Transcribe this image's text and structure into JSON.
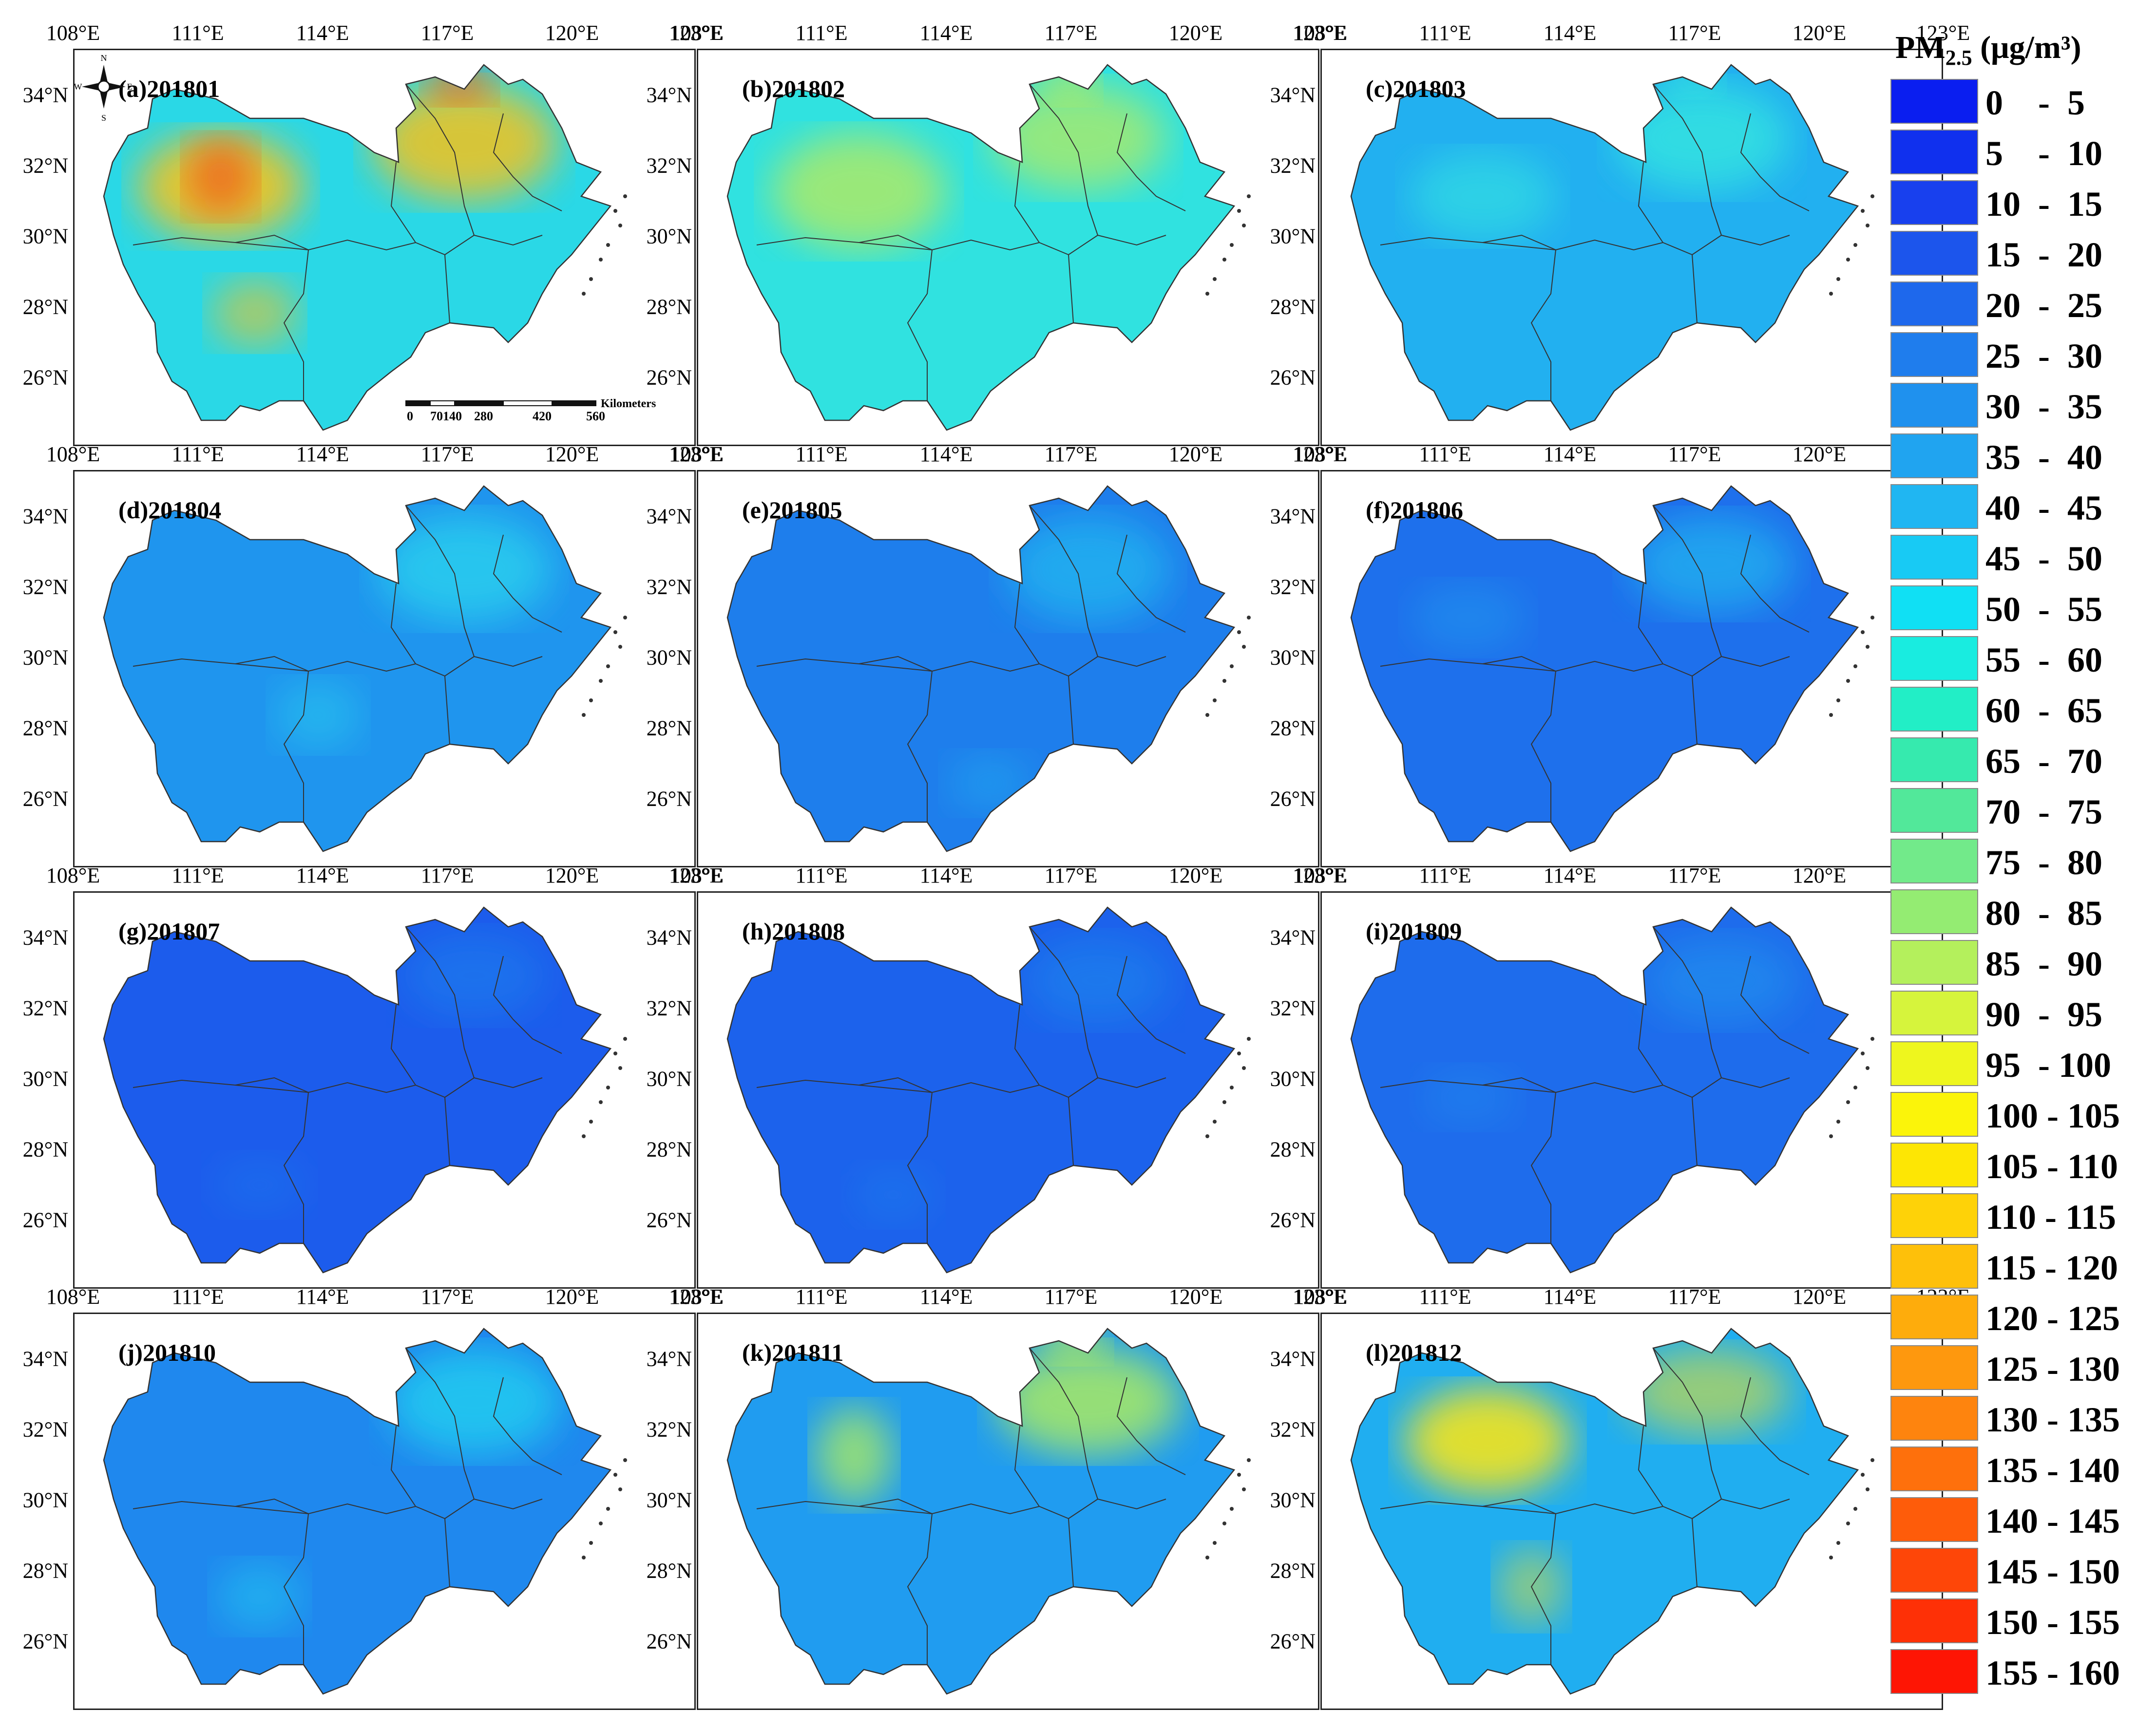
{
  "figure": {
    "panels": [
      {
        "label": "(a)201801"
      },
      {
        "label": "(b)201802"
      },
      {
        "label": "(c)201803"
      },
      {
        "label": "(d)201804"
      },
      {
        "label": "(e)201805"
      },
      {
        "label": "(f)201806"
      },
      {
        "label": "(g)201807"
      },
      {
        "label": "(h)201808"
      },
      {
        "label": "(i)201809"
      },
      {
        "label": "(j)201810"
      },
      {
        "label": "(k)201811"
      },
      {
        "label": "(l)201812"
      }
    ],
    "lon_ticks": [
      "108°E",
      "111°E",
      "114°E",
      "117°E",
      "120°E",
      "123°E"
    ],
    "lat_ticks": [
      "34°N",
      "32°N",
      "30°N",
      "28°N",
      "26°N"
    ],
    "scale_bar": {
      "ticks": [
        "0",
        "70140",
        "280",
        "420",
        "560"
      ],
      "unit": "Kilometers"
    },
    "compass": {
      "n": "N",
      "s": "S",
      "e": "E",
      "w": "W"
    }
  },
  "legend": {
    "title_main": "PM",
    "title_sub": "2.5",
    "title_unit": " (μg/m³)",
    "items": [
      {
        "label": "0    -  5",
        "color": "#0a1ef0"
      },
      {
        "label": "5    -  10",
        "color": "#1030ee"
      },
      {
        "label": "10  -  15",
        "color": "#1840ee"
      },
      {
        "label": "15  -  20",
        "color": "#1c55ec"
      },
      {
        "label": "20  -  25",
        "color": "#1e68ec"
      },
      {
        "label": "25  -  30",
        "color": "#1f7ded"
      },
      {
        "label": "30  -  35",
        "color": "#1f91ee"
      },
      {
        "label": "35  -  40",
        "color": "#20a4f0"
      },
      {
        "label": "40  -  45",
        "color": "#20b6f2"
      },
      {
        "label": "45  -  50",
        "color": "#18caf4"
      },
      {
        "label": "50  -  55",
        "color": "#10e0f4"
      },
      {
        "label": "55  -  60",
        "color": "#19ece0"
      },
      {
        "label": "60  -  65",
        "color": "#22eec6"
      },
      {
        "label": "65  -  70",
        "color": "#36eaae"
      },
      {
        "label": "70  -  75",
        "color": "#52e89a"
      },
      {
        "label": "75  -  80",
        "color": "#72ea8a"
      },
      {
        "label": "80  -  85",
        "color": "#94ec72"
      },
      {
        "label": "85  -  90",
        "color": "#b4f05c"
      },
      {
        "label": "90  -  95",
        "color": "#d6f43c"
      },
      {
        "label": "95  - 100",
        "color": "#eef61e"
      },
      {
        "label": "100 - 105",
        "color": "#fbf40a"
      },
      {
        "label": "105 - 110",
        "color": "#fde604"
      },
      {
        "label": "110 - 115",
        "color": "#fed208"
      },
      {
        "label": "115 - 120",
        "color": "#fec00a"
      },
      {
        "label": "120 - 125",
        "color": "#feac0c"
      },
      {
        "label": "125 - 130",
        "color": "#fe980e"
      },
      {
        "label": "130 - 135",
        "color": "#fe840e"
      },
      {
        "label": "135 - 140",
        "color": "#fe700c"
      },
      {
        "label": "140 - 145",
        "color": "#fe5c0a"
      },
      {
        "label": "145 - 150",
        "color": "#fe4608"
      },
      {
        "label": "150 - 155",
        "color": "#fe3006"
      },
      {
        "label": "155 - 160",
        "color": "#fe1504"
      }
    ]
  },
  "colors": {
    "jan_base": "#2ad8e6",
    "jan_hot": "#f5c21c",
    "jan_peak": "#f0601a",
    "feb_base": "#30e2e0",
    "feb_warm": "#b4ea60",
    "mar_base": "#22b0f0",
    "mar_warm": "#36e6e0",
    "apr_base": "#1f95ee",
    "apr_warm": "#2ad2ee",
    "may_base": "#1e7eec",
    "may_warm": "#22b8f0",
    "jun_base": "#1e70ec",
    "jun_warm": "#22b8f0",
    "jul_base": "#1c5cec",
    "jul_warm": "#1f86ee",
    "aug_base": "#1c62ec",
    "aug_warm": "#1f8eee",
    "sep_base": "#1e6cec",
    "sep_warm": "#209cef",
    "oct_base": "#1f88ee",
    "oct_warm": "#20d0f0",
    "nov_base": "#209cf0",
    "nov_warm": "#aaea62",
    "dec_base": "#20aef0",
    "dec_hot": "#f4e41a"
  }
}
